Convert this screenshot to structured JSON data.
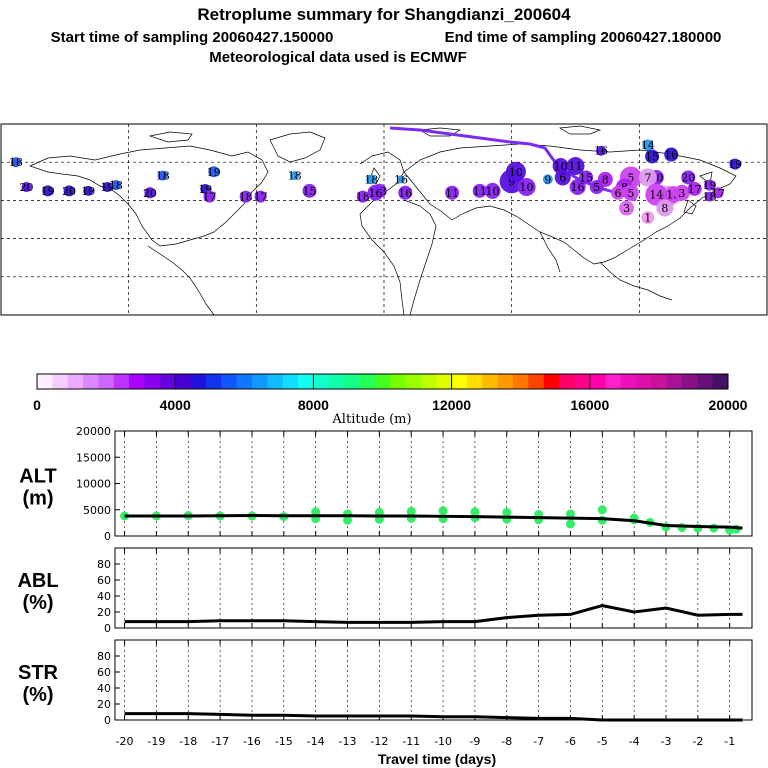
{
  "title": {
    "line1": "Retroplume summary for Shangdianzi_200604",
    "start": "Start time of sampling 20060427.150000",
    "end": "End time of sampling 20060427.180000",
    "line3": "Meteorological data used is ECMWF"
  },
  "map": {
    "bounds": {
      "lon_min": -180,
      "lon_max": 180,
      "lat_min": -20,
      "lat_max": 80
    },
    "markers": [
      {
        "label": "19",
        "lon": 133,
        "lat": 42,
        "color": "#dd99ee",
        "size": 18
      },
      {
        "label": "20",
        "lon": 128,
        "lat": 52,
        "color": "#8822ee",
        "size": 11
      },
      {
        "label": "18",
        "lon": -173,
        "lat": 60,
        "color": "#2255ee",
        "size": 6
      },
      {
        "label": "20",
        "lon": -168,
        "lat": 47,
        "color": "#5511dd",
        "size": 6
      },
      {
        "label": "19",
        "lon": -158,
        "lat": 45,
        "color": "#3311cc",
        "size": 7
      },
      {
        "label": "20",
        "lon": -148,
        "lat": 45,
        "color": "#3311cc",
        "size": 7
      },
      {
        "label": "19",
        "lon": -139,
        "lat": 45,
        "color": "#3311cc",
        "size": 6
      },
      {
        "label": "19",
        "lon": -130,
        "lat": 47,
        "color": "#3311cc",
        "size": 6
      },
      {
        "label": "18",
        "lon": -126,
        "lat": 48,
        "color": "#2255ee",
        "size": 6
      },
      {
        "label": "18",
        "lon": -104,
        "lat": 53,
        "color": "#2255ee",
        "size": 6
      },
      {
        "label": "20",
        "lon": -110,
        "lat": 44,
        "color": "#5511dd",
        "size": 7
      },
      {
        "label": "19",
        "lon": -80,
        "lat": 55,
        "color": "#2255ee",
        "size": 7
      },
      {
        "label": "19",
        "lon": -84,
        "lat": 46,
        "color": "#3311cc",
        "size": 6
      },
      {
        "label": "17",
        "lon": -82,
        "lat": 42,
        "color": "#8822ee",
        "size": 8
      },
      {
        "label": "18",
        "lon": -65,
        "lat": 42,
        "color": "#8822ee",
        "size": 8
      },
      {
        "label": "17",
        "lon": -58,
        "lat": 42,
        "color": "#8822ee",
        "size": 8
      },
      {
        "label": "18",
        "lon": -42,
        "lat": 53,
        "color": "#2299ee",
        "size": 5
      },
      {
        "label": "18",
        "lon": -6,
        "lat": 51,
        "color": "#2299ee",
        "size": 6
      },
      {
        "label": "15",
        "lon": -35,
        "lat": 45,
        "color": "#8822ee",
        "size": 10
      },
      {
        "label": "18",
        "lon": -10,
        "lat": 42,
        "color": "#8822ee",
        "size": 8
      },
      {
        "label": "18",
        "lon": -2,
        "lat": 45,
        "color": "#8822ee",
        "size": 10
      },
      {
        "label": "16",
        "lon": 10,
        "lat": 44,
        "color": "#8822ee",
        "size": 10
      },
      {
        "label": "16",
        "lon": -4,
        "lat": 44,
        "color": "#8822ee",
        "size": 12
      },
      {
        "label": "11",
        "lon": 32,
        "lat": 44,
        "color": "#8822ee",
        "size": 10
      },
      {
        "label": "16",
        "lon": 8,
        "lat": 51,
        "color": "#2299ee",
        "size": 4
      },
      {
        "label": "11",
        "lon": 45,
        "lat": 45,
        "color": "#8822ee",
        "size": 10
      },
      {
        "label": "9",
        "lon": 60,
        "lat": 50,
        "color": "#5511dd",
        "size": 20
      },
      {
        "label": "10",
        "lon": 62,
        "lat": 55,
        "color": "#5511dd",
        "size": 16
      },
      {
        "label": "10",
        "lon": 51,
        "lat": 45,
        "color": "#8822ee",
        "size": 12
      },
      {
        "label": "10",
        "lon": 67,
        "lat": 47,
        "color": "#8822ee",
        "size": 14
      },
      {
        "label": "9",
        "lon": 77,
        "lat": 51,
        "color": "#2299ee",
        "size": 6
      },
      {
        "label": "10",
        "lon": 83,
        "lat": 58,
        "color": "#5511dd",
        "size": 12
      },
      {
        "label": "11",
        "lon": 90,
        "lat": 58,
        "color": "#5511dd",
        "size": 14
      },
      {
        "label": "16",
        "lon": 102,
        "lat": 66,
        "color": "#5511dd",
        "size": 6
      },
      {
        "label": "16",
        "lon": 91,
        "lat": 47,
        "color": "#8822ee",
        "size": 12
      },
      {
        "label": "15",
        "lon": 95,
        "lat": 52,
        "color": "#8822ee",
        "size": 10
      },
      {
        "label": "6",
        "lon": 84,
        "lat": 52,
        "color": "#5511dd",
        "size": 12
      },
      {
        "label": "5",
        "lon": 100,
        "lat": 47,
        "color": "#8822ee",
        "size": 10
      },
      {
        "label": "8",
        "lon": 104,
        "lat": 51,
        "color": "#aa22ee",
        "size": 11
      },
      {
        "label": "5",
        "lon": 116,
        "lat": 52,
        "color": "#cc44ee",
        "size": 18
      },
      {
        "label": "7",
        "lon": 124,
        "lat": 52,
        "color": "#dd99ee",
        "size": 14
      },
      {
        "label": "8",
        "lon": 113,
        "lat": 47,
        "color": "#aa22ee",
        "size": 13
      },
      {
        "label": "6",
        "lon": 110,
        "lat": 44,
        "color": "#cc44ee",
        "size": 10
      },
      {
        "label": "5",
        "lon": 116,
        "lat": 44,
        "color": "#cc44ee",
        "size": 12
      },
      {
        "label": "14",
        "lon": 128,
        "lat": 43,
        "color": "#cc44ee",
        "size": 18
      },
      {
        "label": "13",
        "lon": 136,
        "lat": 43,
        "color": "#cc44ee",
        "size": 13
      },
      {
        "label": "3",
        "lon": 140,
        "lat": 44,
        "color": "#cc44ee",
        "size": 12
      },
      {
        "label": "17",
        "lon": 146,
        "lat": 46,
        "color": "#aa22ee",
        "size": 10
      },
      {
        "label": "20",
        "lon": 143,
        "lat": 52,
        "color": "#8822ee",
        "size": 10
      },
      {
        "label": "19",
        "lon": 153,
        "lat": 48,
        "color": "#8822ee",
        "size": 7
      },
      {
        "label": "19",
        "lon": 165,
        "lat": 59,
        "color": "#3311cc",
        "size": 7
      },
      {
        "label": "17",
        "lon": 157,
        "lat": 44,
        "color": "#aa22ee",
        "size": 7
      },
      {
        "label": "18",
        "lon": 153,
        "lat": 42,
        "color": "#8822ee",
        "size": 6
      },
      {
        "label": "14",
        "lon": 124,
        "lat": 69,
        "color": "#2299ee",
        "size": 7
      },
      {
        "label": "15",
        "lon": 126,
        "lat": 63,
        "color": "#3311cc",
        "size": 10
      },
      {
        "label": "16",
        "lon": 135,
        "lat": 64,
        "color": "#3311cc",
        "size": 10
      },
      {
        "label": "3",
        "lon": 114,
        "lat": 36,
        "color": "#dd66ee",
        "size": 11
      },
      {
        "label": "8",
        "lon": 132,
        "lat": 36,
        "color": "#dd99ee",
        "size": 13
      },
      {
        "label": "1",
        "lon": 124,
        "lat": 31,
        "color": "#ee99ee",
        "size": 9
      }
    ]
  },
  "colorbar": {
    "colors": [
      "#ffeeff",
      "#f7ccff",
      "#eeaaff",
      "#dd88ff",
      "#cc66ff",
      "#bb33ff",
      "#aa00ff",
      "#8800ee",
      "#6600dd",
      "#4400cc",
      "#2211dd",
      "#1133ee",
      "#1155ff",
      "#1177ff",
      "#1199ff",
      "#11bbff",
      "#11ddff",
      "#11ffee",
      "#11ffcc",
      "#11ffaa",
      "#11ff88",
      "#22ff55",
      "#44ff22",
      "#77ff00",
      "#99ff00",
      "#bbff00",
      "#ddff00",
      "#ffff00",
      "#ffdd00",
      "#ffbb00",
      "#ff9900",
      "#ff7700",
      "#ff4400",
      "#ff0000",
      "#ff0066",
      "#ff0088",
      "#ff00aa",
      "#ff22cc",
      "#ee11bb",
      "#dd11aa",
      "#cc1199",
      "#aa1199",
      "#881188",
      "#661177",
      "#441166"
    ],
    "ticks": [
      0,
      4000,
      8000,
      12000,
      16000,
      20000
    ],
    "label": "Altitude (m)"
  },
  "chart_data": {
    "type": "line",
    "xlabel": "Travel time (days)",
    "xlim": [
      -20.3,
      -0.3
    ],
    "xticks": [
      -20,
      -19,
      -18,
      -17,
      -16,
      -15,
      -14,
      -13,
      -12,
      -11,
      -10,
      -9,
      -8,
      -7,
      -6,
      -5,
      -4,
      -3,
      -2,
      -1
    ],
    "panels": [
      {
        "label_top": "ALT",
        "label_bottom": "(m)",
        "ylim": [
          0,
          20000
        ],
        "yticks": [
          0,
          5000,
          10000,
          15000,
          20000
        ],
        "line": {
          "x": [
            -20,
            -19,
            -18,
            -17,
            -16,
            -15,
            -14,
            -13,
            -12,
            -11,
            -10,
            -9,
            -8,
            -7,
            -6,
            -5,
            -4,
            -3,
            -2,
            -1,
            -0.6
          ],
          "y": [
            3800,
            3800,
            3800,
            3850,
            3900,
            3850,
            3850,
            3850,
            3800,
            3800,
            3750,
            3700,
            3600,
            3500,
            3400,
            3300,
            2900,
            2000,
            1800,
            1700,
            1500
          ]
        },
        "scatter": {
          "x": [
            -20,
            -19,
            -18,
            -17,
            -16,
            -15,
            -14,
            -14,
            -13,
            -13,
            -12,
            -12,
            -11,
            -11,
            -10,
            -10,
            -9,
            -9,
            -8,
            -8,
            -7,
            -7,
            -6,
            -6,
            -5,
            -5,
            -4,
            -4,
            -3.5,
            -3,
            -2.5,
            -2,
            -1.5,
            -1,
            -0.8
          ],
          "y": [
            3800,
            3800,
            3900,
            3800,
            3800,
            3700,
            3300,
            4600,
            3000,
            4200,
            3200,
            4500,
            3400,
            4700,
            3300,
            4800,
            3500,
            4600,
            3200,
            4500,
            3100,
            4100,
            2300,
            4200,
            3000,
            5000,
            3100,
            3400,
            2600,
            1700,
            1600,
            1500,
            1500,
            1100,
            1300
          ],
          "color": "#33ee66"
        }
      },
      {
        "label_top": "ABL",
        "label_bottom": "(%)",
        "ylim": [
          0,
          100
        ],
        "yticks": [
          0,
          20,
          40,
          60,
          80
        ],
        "line": {
          "x": [
            -20,
            -19,
            -18,
            -17,
            -16,
            -15,
            -14,
            -13,
            -12,
            -11,
            -10,
            -9,
            -8,
            -7,
            -6,
            -5,
            -4,
            -3,
            -2,
            -1,
            -0.6
          ],
          "y": [
            8,
            8,
            8,
            9,
            9,
            9,
            8,
            7,
            7,
            7,
            8,
            8,
            13,
            16,
            17,
            28,
            20,
            25,
            16,
            17,
            17
          ]
        }
      },
      {
        "label_top": "STR",
        "label_bottom": "(%)",
        "ylim": [
          0,
          100
        ],
        "yticks": [
          0,
          20,
          40,
          60,
          80
        ],
        "line": {
          "x": [
            -20,
            -19,
            -18,
            -17,
            -16,
            -15,
            -14,
            -13,
            -12,
            -11,
            -10,
            -9,
            -8,
            -7,
            -6,
            -5,
            -4,
            -3,
            -2,
            -1,
            -0.6
          ],
          "y": [
            8,
            8,
            8,
            7,
            6,
            6,
            5,
            5,
            5,
            5,
            4,
            4,
            3,
            2,
            2,
            0,
            0,
            0,
            0,
            0,
            0
          ]
        }
      }
    ]
  }
}
